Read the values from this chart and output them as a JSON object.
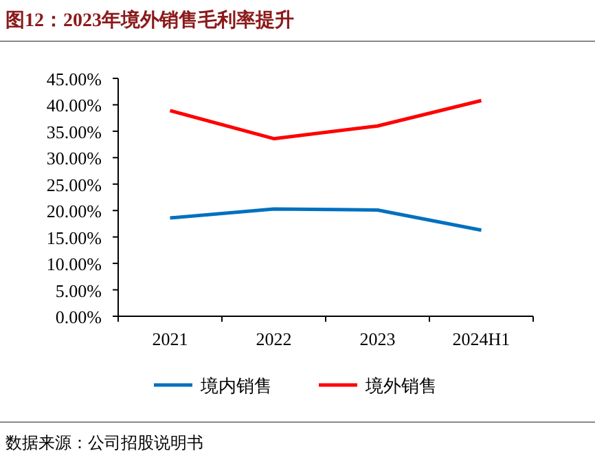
{
  "chart_data": {
    "type": "line",
    "title": "图12：2023年境外销售毛利率提升",
    "categories": [
      "2021",
      "2022",
      "2023",
      "2024H1"
    ],
    "series": [
      {
        "name": "境内销售",
        "color": "#0070c0",
        "values": [
          18.6,
          20.3,
          20.1,
          16.3
        ]
      },
      {
        "name": "境外销售",
        "color": "#ff0000",
        "values": [
          38.9,
          33.6,
          36.0,
          40.8
        ]
      }
    ],
    "ylim": [
      0,
      45
    ],
    "yticks": [
      {
        "value": 0,
        "label": "0.00%"
      },
      {
        "value": 5,
        "label": "5.00%"
      },
      {
        "value": 10,
        "label": "10.00%"
      },
      {
        "value": 15,
        "label": "15.00%"
      },
      {
        "value": 20,
        "label": "20.00%"
      },
      {
        "value": 25,
        "label": "25.00%"
      },
      {
        "value": 30,
        "label": "30.00%"
      },
      {
        "value": 35,
        "label": "35.00%"
      },
      {
        "value": 40,
        "label": "40.00%"
      },
      {
        "value": 45,
        "label": "45.00%"
      }
    ],
    "legend": "bottom",
    "grid": false,
    "annotations": [
      "数据来源：公司招股说明书"
    ]
  }
}
